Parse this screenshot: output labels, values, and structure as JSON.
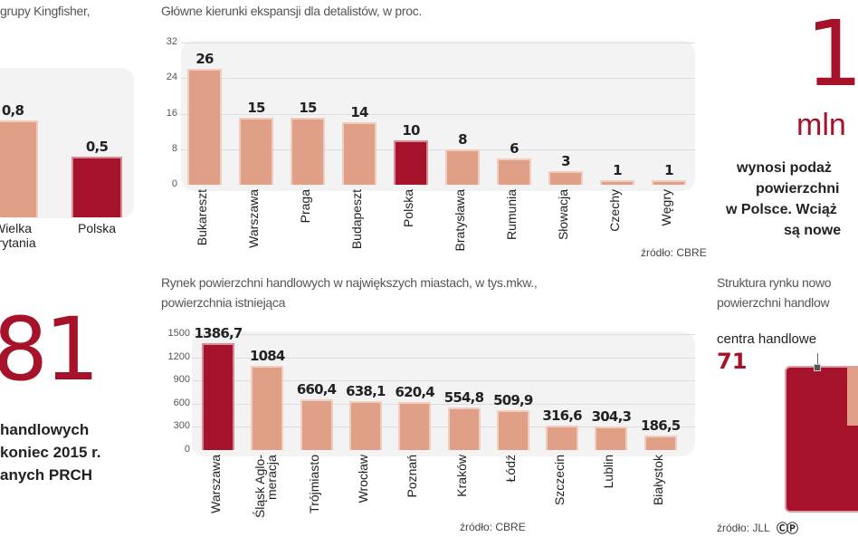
{
  "chart_data": [
    {
      "type": "bar",
      "title": "grupy Kingfisher,",
      "categories": [
        "Wielka Brytania",
        "Polska"
      ],
      "values": [
        0.8,
        0.5
      ],
      "value_labels": [
        "0,8",
        "0,5"
      ],
      "highlight": "Polska"
    },
    {
      "type": "bar",
      "title": "Główne kierunki ekspansji dla detalistów, w proc.",
      "categories": [
        "Bukareszt",
        "Warszawa",
        "Praga",
        "Budapeszt",
        "Polska",
        "Bratysława",
        "Rumunia",
        "Słowacja",
        "Czechy",
        "Węgry"
      ],
      "values": [
        26,
        15,
        15,
        14,
        10,
        8,
        6,
        3,
        1,
        1
      ],
      "value_labels": [
        "26",
        "15",
        "15",
        "14",
        "10",
        "8",
        "6",
        "3",
        "1",
        "1"
      ],
      "yticks": [
        "0",
        "8",
        "16",
        "24",
        "32"
      ],
      "ylim": [
        0,
        32
      ],
      "grid": true,
      "highlight": "Polska",
      "source": "źródło: CBRE"
    },
    {
      "type": "bar",
      "title": "Rynek powierzchni handlowych w największych miastach, w tys.mkw.,",
      "subtitle": "powierzchnia istniejąca",
      "categories": [
        "Warszawa",
        "Śląsk Aglo-\nmeracja",
        "Trójmiasto",
        "Wrocław",
        "Poznań",
        "Kraków",
        "Łódź",
        "Szczecin",
        "Lublin",
        "Białystok"
      ],
      "values": [
        1386.7,
        1084,
        660.4,
        638.1,
        620.4,
        554.8,
        509.9,
        316.6,
        304.3,
        186.5
      ],
      "value_labels": [
        "1386,7",
        "1084",
        "660,4",
        "638,1",
        "620,4",
        "554,8",
        "509,9",
        "316,6",
        "304,3",
        "186,5"
      ],
      "yticks": [
        "0",
        "300",
        "600",
        "900",
        "1200",
        "1500"
      ],
      "ylim": [
        0,
        1500
      ],
      "grid": true,
      "highlight": "Warszawa",
      "source": "źródło: CBRE"
    }
  ],
  "left": {
    "big_number": "81",
    "lines": [
      "handlowych",
      "koniec 2015 r.",
      "anych PRCH"
    ]
  },
  "right": {
    "big_number": "1",
    "unit": "mln",
    "lines": [
      "wynosi podaż",
      "powierzchni",
      "w Polsce. Wciąż",
      "są nowe"
    ],
    "structure_title": [
      "Struktura rynku nowo",
      "powierzchni handlow"
    ],
    "segment_label": "centra handlowe",
    "segment_value": "71",
    "source": "źródło: JLL",
    "license_icon": "cc-icon"
  },
  "colors": {
    "accent": "#a5122a",
    "bar": "#e0a088",
    "panel": "#f3f3f4"
  }
}
